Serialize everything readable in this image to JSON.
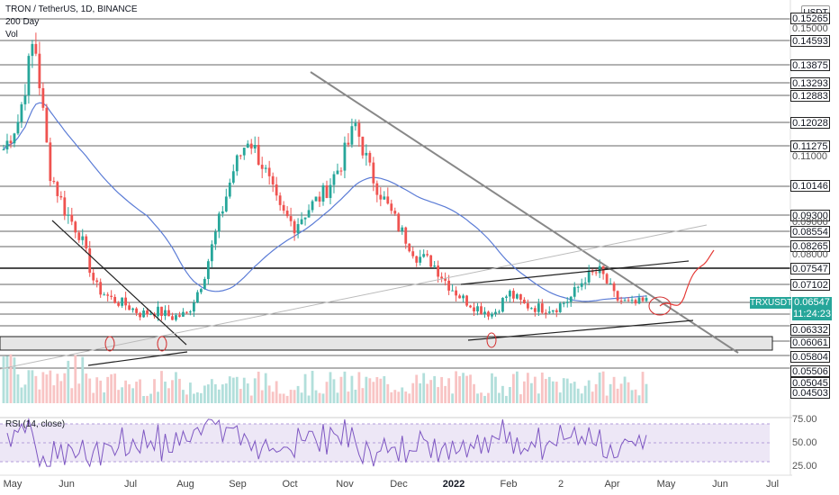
{
  "header": {
    "symbol_line": "TRON / TetherUS, 1D, BINANCE",
    "ma_label": "200 Day",
    "vol_label": "Vol",
    "currency": "USDT"
  },
  "price_levels": [
    "0.15265",
    "0.14593",
    "0.13875",
    "0.13293",
    "0.12883",
    "0.12028",
    "0.11275",
    "0.10146",
    "0.09300",
    "0.08554",
    "0.08265",
    "0.07547",
    "0.07102",
    "0.06332",
    "0.06061",
    "0.05804",
    "0.05506",
    "0.05045",
    "0.04503"
  ],
  "axis_ticks": [
    "0.15000",
    "0.11000",
    "0.09000",
    "0.08000"
  ],
  "last_price": {
    "symbol": "TRXUSDT",
    "value": "0.06547",
    "countdown": "11:24:23"
  },
  "rsi": {
    "label": "RSI (14, close)",
    "ticks": [
      "75.00",
      "50.00",
      "25.00"
    ]
  },
  "x_axis": [
    "May",
    "Jun",
    "Jul",
    "Aug",
    "Sep",
    "Oct",
    "Nov",
    "Dec",
    "2022",
    "Feb",
    "2",
    "Apr",
    "May",
    "Jun",
    "Jul"
  ],
  "colors": {
    "up": "#26a69a",
    "down": "#ef5350",
    "ma": "#5b7cd6",
    "rsi": "#7e57c2",
    "projection": "#e53935",
    "trend": "#555555"
  },
  "chart_data": {
    "type": "line",
    "title": "TRON / TetherUS, 1D, BINANCE",
    "series": [
      {
        "name": "TRXUSDT",
        "values": [
          0.115,
          0.125,
          0.152,
          0.108,
          0.095,
          0.087,
          0.07,
          0.066,
          0.064,
          0.061,
          0.062,
          0.06,
          0.061,
          0.072,
          0.09,
          0.108,
          0.119,
          0.109,
          0.095,
          0.09,
          0.096,
          0.101,
          0.11,
          0.123,
          0.107,
          0.097,
          0.088,
          0.08,
          0.078,
          0.071,
          0.066,
          0.063,
          0.061,
          0.068,
          0.064,
          0.063,
          0.063,
          0.066,
          0.073,
          0.075,
          0.066,
          0.064,
          0.065
        ]
      }
    ],
    "ylim": [
      0.043,
      0.158
    ],
    "rsi_range": [
      20,
      80
    ]
  }
}
